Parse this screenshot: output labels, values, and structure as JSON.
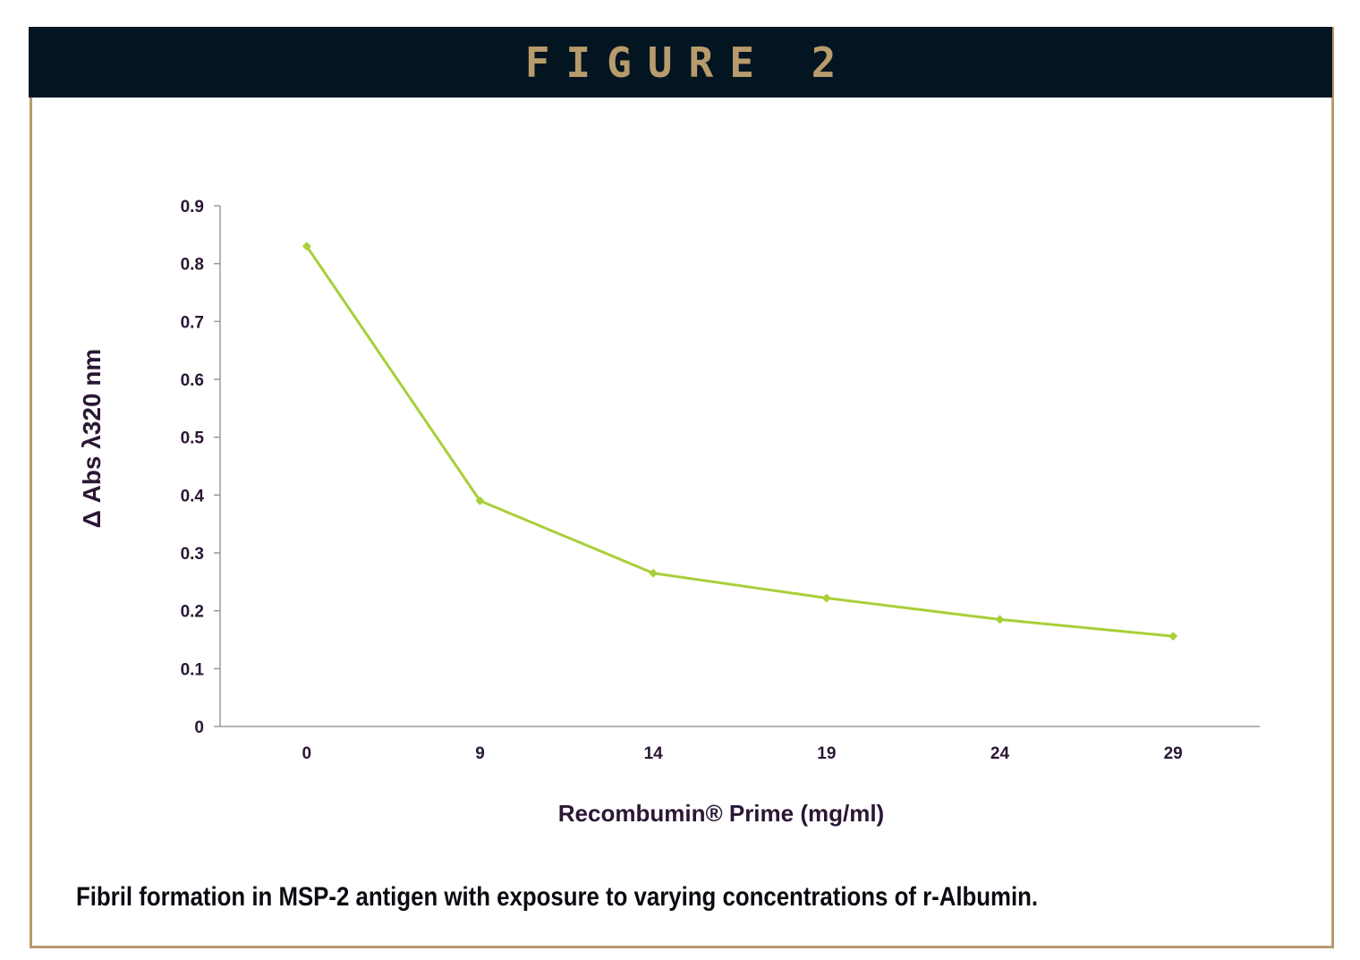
{
  "header": {
    "title": "FIGURE 2"
  },
  "caption": "Fibril formation in MSP-2 antigen with exposure to varying concentrations of r-Albumin.",
  "colors": {
    "header_bg": "#031521",
    "accent": "#b79b6c",
    "series": "#a9cf38",
    "axis_text": "#2b1734"
  },
  "chart_data": {
    "type": "line",
    "title": "",
    "xlabel": "Recombumin® Prime  (mg/ml)",
    "ylabel": "Δ Abs λ320 nm",
    "categories": [
      "0",
      "9",
      "14",
      "19",
      "24",
      "29"
    ],
    "series": [
      {
        "values": [
          0.83,
          0.39,
          0.265,
          0.222,
          0.185,
          0.156
        ]
      }
    ],
    "ylim": [
      0,
      0.9
    ],
    "yticks": [
      "0",
      "0.1",
      "0.2",
      "0.3",
      "0.4",
      "0.5",
      "0.6",
      "0.7",
      "0.8",
      "0.9"
    ],
    "grid": false,
    "legend": "none",
    "marker": "diamond"
  }
}
